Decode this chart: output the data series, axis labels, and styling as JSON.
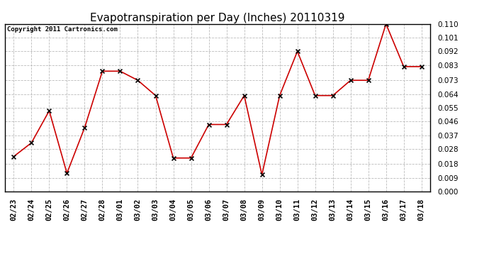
{
  "title": "Evapotranspiration per Day (Inches) 20110319",
  "copyright": "Copyright 2011 Cartronics.com",
  "dates": [
    "02/23",
    "02/24",
    "02/25",
    "02/26",
    "02/27",
    "02/28",
    "03/01",
    "03/02",
    "03/03",
    "03/04",
    "03/05",
    "03/06",
    "03/07",
    "03/08",
    "03/09",
    "03/10",
    "03/11",
    "03/12",
    "03/13",
    "03/14",
    "03/15",
    "03/16",
    "03/17",
    "03/18"
  ],
  "values": [
    0.023,
    0.032,
    0.053,
    0.012,
    0.042,
    0.079,
    0.079,
    0.073,
    0.063,
    0.022,
    0.022,
    0.044,
    0.044,
    0.063,
    0.011,
    0.063,
    0.092,
    0.063,
    0.063,
    0.073,
    0.073,
    0.11,
    0.082,
    0.082
  ],
  "line_color": "#cc0000",
  "marker": "x",
  "marker_color": "#000000",
  "bg_color": "#ffffff",
  "grid_color": "#bbbbbb",
  "ylim": [
    0.0,
    0.11
  ],
  "yticks": [
    0.0,
    0.009,
    0.018,
    0.028,
    0.037,
    0.046,
    0.055,
    0.064,
    0.073,
    0.083,
    0.092,
    0.101,
    0.11
  ],
  "title_fontsize": 11,
  "copyright_fontsize": 6.5,
  "tick_fontsize": 7.5
}
